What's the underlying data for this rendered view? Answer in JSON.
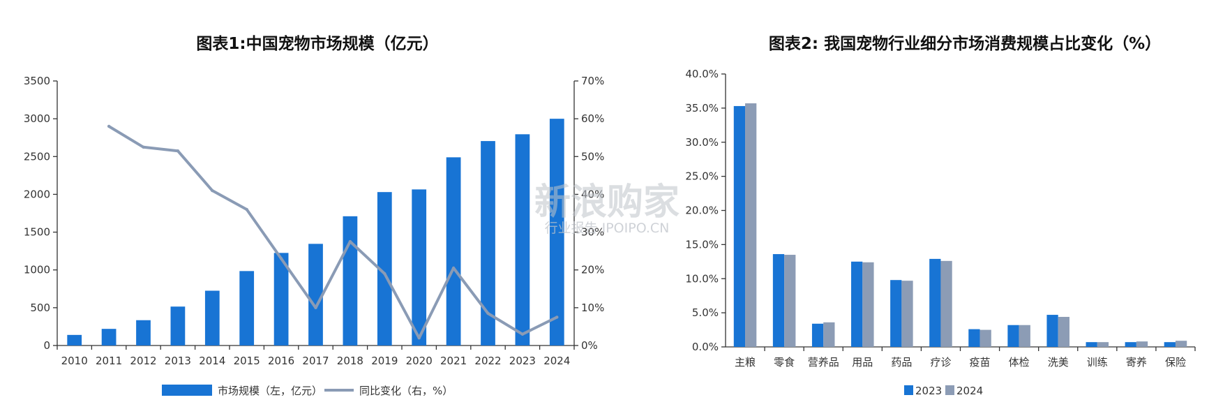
{
  "colors": {
    "bar_blue": "#1874d4",
    "bar_grey": "#8c9cb5",
    "line_grey": "#8a9bb5"
  },
  "watermark": {
    "main": "新浪购家",
    "sub": "行业报告 IPOIPO.CN"
  },
  "chart_data": [
    {
      "type": "bar+line",
      "title": "图表1:中国宠物市场规模（亿元）",
      "categories": [
        "2010",
        "2011",
        "2012",
        "2013",
        "2014",
        "2015",
        "2016",
        "2017",
        "2018",
        "2019",
        "2020",
        "2021",
        "2022",
        "2023",
        "2024"
      ],
      "series": [
        {
          "name": "市场规模（左，亿元）",
          "type": "bar",
          "axis": "left",
          "values": [
            140,
            220,
            335,
            515,
            725,
            985,
            1225,
            1345,
            1710,
            2030,
            2065,
            2490,
            2705,
            2795,
            3000
          ]
        },
        {
          "name": "同比变化（右，%）",
          "type": "line",
          "axis": "right",
          "values": [
            null,
            58,
            52.5,
            51.5,
            41,
            36,
            23,
            10,
            27.5,
            19,
            2,
            20.5,
            8.5,
            3,
            7.5
          ]
        }
      ],
      "ylim_left": [
        0,
        3500
      ],
      "yticks_left": [
        "0",
        "500",
        "1000",
        "1500",
        "2000",
        "2500",
        "3000",
        "3500"
      ],
      "ylim_right": [
        0,
        70
      ],
      "yticks_right": [
        "0%",
        "10%",
        "20%",
        "30%",
        "40%",
        "50%",
        "60%",
        "70%"
      ],
      "legend_position": "bottom",
      "grid": false
    },
    {
      "type": "bar",
      "title": "图表2: 我国宠物行业细分市场消费规模占比变化（%）",
      "categories": [
        "主粮",
        "零食",
        "营养品",
        "用品",
        "药品",
        "疗诊",
        "疫苗",
        "体检",
        "洗美",
        "训练",
        "寄养",
        "保险"
      ],
      "series": [
        {
          "name": "2023",
          "values": [
            35.3,
            13.6,
            3.4,
            12.5,
            9.8,
            12.9,
            2.6,
            3.2,
            4.7,
            0.7,
            0.7,
            0.7
          ]
        },
        {
          "name": "2024",
          "values": [
            35.7,
            13.5,
            3.6,
            12.4,
            9.7,
            12.6,
            2.5,
            3.2,
            4.4,
            0.7,
            0.8,
            0.9
          ]
        }
      ],
      "ylim": [
        0,
        40
      ],
      "yticks": [
        "0.0%",
        "5.0%",
        "10.0%",
        "15.0%",
        "20.0%",
        "25.0%",
        "30.0%",
        "35.0%",
        "40.0%"
      ],
      "legend_position": "bottom",
      "grid": false
    }
  ]
}
